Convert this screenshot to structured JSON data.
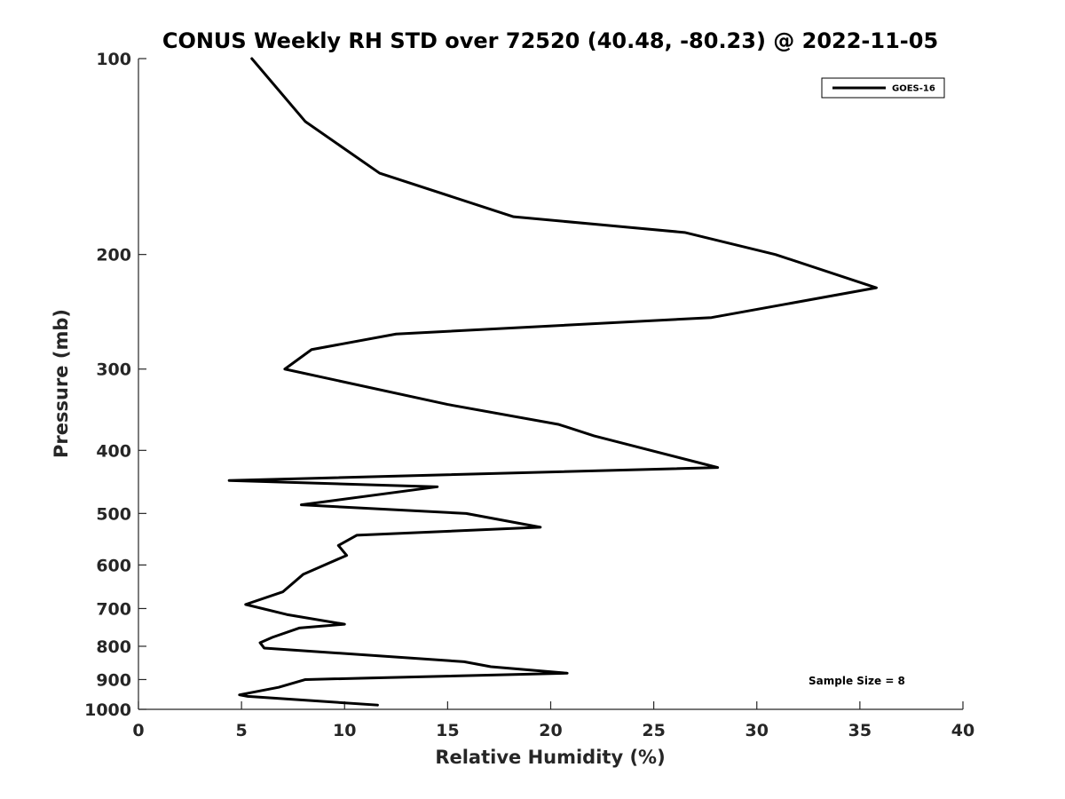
{
  "chart_data": {
    "type": "line",
    "title": "CONUS Weekly RH STD over 72520 (40.48, -80.23) @ 2022-11-05",
    "xlabel": "Relative Humidity (%)",
    "ylabel": "Pressure (mb)",
    "xlim": [
      0,
      40
    ],
    "ylim": [
      100,
      1000
    ],
    "yscale": "log",
    "y_reversed": true,
    "grid": false,
    "x_ticks": [
      0,
      5,
      10,
      15,
      20,
      25,
      30,
      35,
      40
    ],
    "x_tick_labels": [
      "0",
      "5",
      "10",
      "15",
      "20",
      "25",
      "30",
      "35",
      "40"
    ],
    "y_ticks": [
      100,
      200,
      300,
      400,
      500,
      600,
      700,
      800,
      900,
      1000
    ],
    "y_tick_labels": [
      "100",
      "200",
      "300",
      "400",
      "500",
      "600",
      "700",
      "800",
      "900",
      "1000"
    ],
    "legend_position": "top-right",
    "series": [
      {
        "name": "GOES-16",
        "color": "#000000",
        "points": [
          {
            "x": 5.5,
            "p": 100
          },
          {
            "x": 8.1,
            "p": 125
          },
          {
            "x": 11.7,
            "p": 150
          },
          {
            "x": 18.2,
            "p": 175
          },
          {
            "x": 26.5,
            "p": 185
          },
          {
            "x": 30.9,
            "p": 200
          },
          {
            "x": 35.8,
            "p": 225
          },
          {
            "x": 27.8,
            "p": 250
          },
          {
            "x": 12.5,
            "p": 265
          },
          {
            "x": 8.4,
            "p": 280
          },
          {
            "x": 7.1,
            "p": 300
          },
          {
            "x": 15.0,
            "p": 340
          },
          {
            "x": 20.4,
            "p": 365
          },
          {
            "x": 22.1,
            "p": 380
          },
          {
            "x": 28.1,
            "p": 425
          },
          {
            "x": 4.4,
            "p": 445
          },
          {
            "x": 14.5,
            "p": 455
          },
          {
            "x": 7.9,
            "p": 485
          },
          {
            "x": 15.9,
            "p": 500
          },
          {
            "x": 19.5,
            "p": 525
          },
          {
            "x": 10.6,
            "p": 540
          },
          {
            "x": 9.7,
            "p": 560
          },
          {
            "x": 10.1,
            "p": 580
          },
          {
            "x": 8.0,
            "p": 620
          },
          {
            "x": 7.0,
            "p": 660
          },
          {
            "x": 5.2,
            "p": 690
          },
          {
            "x": 7.2,
            "p": 715
          },
          {
            "x": 10.0,
            "p": 740
          },
          {
            "x": 7.8,
            "p": 750
          },
          {
            "x": 6.5,
            "p": 775
          },
          {
            "x": 5.9,
            "p": 790
          },
          {
            "x": 6.1,
            "p": 805
          },
          {
            "x": 15.8,
            "p": 845
          },
          {
            "x": 17.1,
            "p": 860
          },
          {
            "x": 20.8,
            "p": 880
          },
          {
            "x": 8.1,
            "p": 900
          },
          {
            "x": 6.8,
            "p": 925
          },
          {
            "x": 4.9,
            "p": 950
          },
          {
            "x": 5.3,
            "p": 955
          },
          {
            "x": 11.6,
            "p": 985
          }
        ]
      }
    ],
    "annotations": [
      {
        "text": "Sample Size = 8"
      }
    ]
  }
}
